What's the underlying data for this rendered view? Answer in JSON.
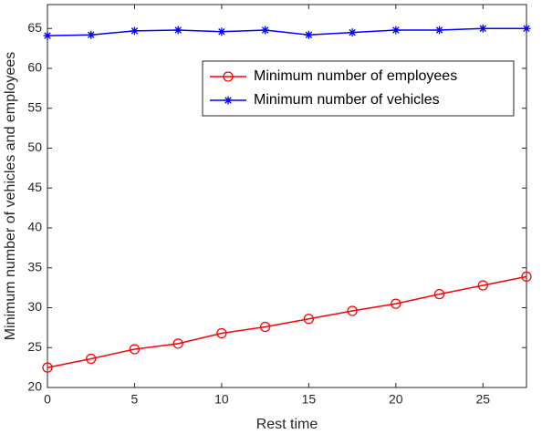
{
  "chart_data": {
    "type": "line",
    "x": [
      0,
      2.5,
      5,
      7.5,
      10,
      12.5,
      15,
      17.5,
      20,
      22.5,
      25,
      27.5
    ],
    "series": [
      {
        "name": "Minimum number of employees",
        "color": "#ff0000",
        "marker": "circle",
        "values": [
          22.5,
          23.6,
          24.8,
          25.5,
          26.8,
          27.6,
          28.6,
          29.6,
          30.5,
          31.7,
          32.8,
          33.9
        ]
      },
      {
        "name": "Minimum number of vehicles",
        "color": "#0000ff",
        "marker": "asterisk",
        "values": [
          64.1,
          64.2,
          64.7,
          64.8,
          64.6,
          64.8,
          64.2,
          64.5,
          64.8,
          64.8,
          65.0,
          65.0
        ]
      }
    ],
    "x_label": "Rest time",
    "y_label": "Minimum number of vehicles and employees",
    "xlim": [
      0,
      27.5
    ],
    "xticks": [
      0,
      5,
      10,
      15,
      20,
      25
    ],
    "ylim": [
      20,
      68
    ],
    "yticks": [
      20,
      25,
      30,
      35,
      40,
      45,
      50,
      55,
      60,
      65
    ],
    "grid": false,
    "legend_position": "upper right"
  }
}
